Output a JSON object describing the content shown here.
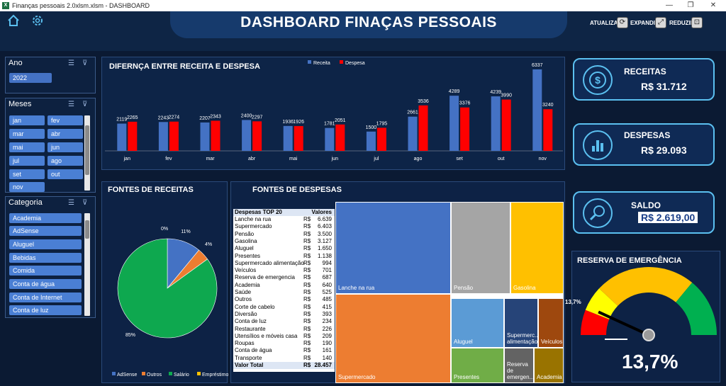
{
  "window": {
    "title": "Finanças pessoais 2.0xlsm.xlsm - DASHBOARD",
    "minimize": "—",
    "restore": "❐",
    "close": "✕"
  },
  "header": {
    "title": "DASHBOARD FINAÇAS PESSOAIS",
    "buttons": [
      {
        "label": "ATUALIZAR",
        "icon": "⟳"
      },
      {
        "label": "EXPANDIR",
        "icon": "⤢"
      },
      {
        "label": "REDUZIR",
        "icon": "⊡"
      }
    ]
  },
  "slicers": {
    "ano": {
      "title": "Ano",
      "items": [
        "2022"
      ]
    },
    "meses": {
      "title": "Meses",
      "items": [
        "jan",
        "fev",
        "mar",
        "abr",
        "mai",
        "jun",
        "jul",
        "ago",
        "set",
        "out",
        "nov"
      ]
    },
    "categoria": {
      "title": "Categoria",
      "items": [
        "Academia",
        "AdSense",
        "Aluguel",
        "Bebidas",
        "Comida",
        "Conta de água",
        "Conta de Internet",
        "Conta de luz"
      ]
    }
  },
  "chart_data": [
    {
      "type": "bar",
      "title": "DIFERNÇA ENTRE RECEITA E DESPESA",
      "categories": [
        "jan",
        "fev",
        "mar",
        "abr",
        "mai",
        "jun",
        "jul",
        "ago",
        "set",
        "out",
        "nov"
      ],
      "series": [
        {
          "name": "Receita",
          "color": "#4472c4",
          "values": [
            2119,
            2243,
            2207,
            2400,
            1936,
            1781,
            1500,
            2661,
            4289,
            4239,
            6337
          ]
        },
        {
          "name": "Despesa",
          "color": "#ff0000",
          "values": [
            2265,
            2274,
            2343,
            2297,
            1926,
            2051,
            1795,
            3536,
            3376,
            3990,
            3240
          ]
        }
      ],
      "legend": "top",
      "ylim": [
        0,
        6500
      ]
    },
    {
      "type": "pie",
      "title": "FONTES DE RECEITAS",
      "categories": [
        "AdSense",
        "Outros",
        "Salário",
        "Empréstimo"
      ],
      "values": [
        11,
        4,
        85,
        0
      ],
      "colors": [
        "#4472c4",
        "#ed7d31",
        "#0ea84f",
        "#ffc000"
      ],
      "labels": [
        "11%",
        "4%",
        "85%",
        "0%"
      ],
      "legend": "bottom"
    },
    {
      "type": "treemap",
      "title": "FONTES DE DESPESAS",
      "categories": [
        "Lanche na rua",
        "Supermercado",
        "Pensão",
        "Gasolina",
        "Aluguel",
        "Supermercado alimentação",
        "Veículos",
        "Presentes",
        "Reserva de emergencia",
        "Academia"
      ],
      "values": [
        6639,
        6403,
        3500,
        3127,
        1650,
        994,
        701,
        1138,
        687,
        640
      ]
    }
  ],
  "treemap_labels": [
    "Lanche na rua",
    "Supermercado",
    "Pensão",
    "Gasolina",
    "Aluguel",
    "Supermerc... alimentação",
    "Veículos",
    "Presentes",
    "Reserva de emergen...",
    "Academia"
  ],
  "expenses_table": {
    "headers": [
      "Despesas TOP 20",
      "Valores"
    ],
    "currency": "R$",
    "rows": [
      [
        "Lanche na rua",
        "6.639"
      ],
      [
        "Supermercado",
        "6.403"
      ],
      [
        "Pensão",
        "3.500"
      ],
      [
        "Gasolina",
        "3.127"
      ],
      [
        "Aluguel",
        "1.650"
      ],
      [
        "Presentes",
        "1.138"
      ],
      [
        "Supermercado alimentação",
        "994"
      ],
      [
        "Veículos",
        "701"
      ],
      [
        "Reserva de emergencia",
        "687"
      ],
      [
        "Academia",
        "640"
      ],
      [
        "Saúde",
        "525"
      ],
      [
        "Outros",
        "485"
      ],
      [
        "Corte de cabelo",
        "415"
      ],
      [
        "Diversão",
        "393"
      ],
      [
        "Conta de luz",
        "234"
      ],
      [
        "Restaurante",
        "226"
      ],
      [
        "Utensílios e móveis casa",
        "209"
      ],
      [
        "Roupas",
        "190"
      ],
      [
        "Conta de água",
        "161"
      ],
      [
        "Transporte",
        "140"
      ]
    ],
    "total_label": "Valor Total",
    "total_value": "28.457"
  },
  "kpis": {
    "receitas": {
      "label": "RECEITAS",
      "value": "R$ 31.712"
    },
    "despesas": {
      "label": "DESPESAS",
      "value": "R$ 29.093"
    },
    "saldo": {
      "label": "SALDO",
      "value": "R$ 2.619,00"
    }
  },
  "reserva": {
    "title": "RESERVA DE EMERGÊNCIA",
    "gauge_label": "13,7%",
    "value": "13,7%",
    "fraction": 0.137
  }
}
